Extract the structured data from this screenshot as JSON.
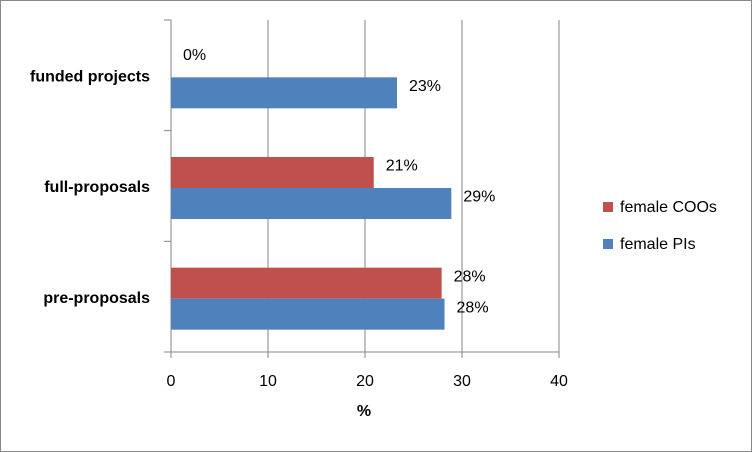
{
  "chart_data": {
    "type": "bar",
    "orientation": "horizontal",
    "categories": [
      "pre-proposals",
      "full-proposals",
      "funded projects"
    ],
    "series": [
      {
        "name": "female COOs",
        "color": "#c0504d",
        "values": [
          27.9,
          20.9,
          0
        ],
        "value_labels": [
          "28%",
          "21%",
          "0%"
        ]
      },
      {
        "name": "female PIs",
        "color": "#4f81bd",
        "values": [
          28.2,
          28.9,
          23.3
        ],
        "value_labels": [
          "28%",
          "29%",
          "23%"
        ]
      }
    ],
    "xlabel": "%",
    "xlim": [
      0,
      40
    ],
    "xticks": [
      0,
      10,
      20,
      30,
      40
    ],
    "grid": true,
    "legend": "right"
  }
}
